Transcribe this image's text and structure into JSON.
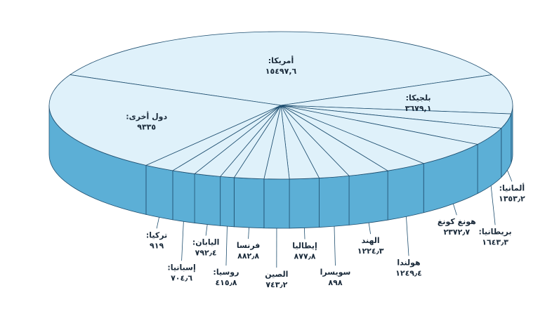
{
  "chart_data": {
    "type": "pie3d",
    "categories": [
      "أمريكا:",
      "بلجيكا:",
      "ألمانيا:",
      "بريطانيا:",
      "هونغ كونغ",
      "هولندا",
      "الهند",
      "سويسرا",
      "إيطاليا",
      "الصين",
      "فرنسا",
      "روسيا:",
      "اليابان:",
      "إسبانيا:",
      "تركيا:",
      "دول أخرى:"
    ],
    "values": [
      15497.6,
      3679.1,
      1353.2,
      1643.3,
      2372.7,
      1249.4,
      1224.3,
      898,
      877.8,
      743.2,
      882.8,
      415.8,
      792.4,
      704.6,
      919,
      9335
    ],
    "value_labels": [
      "١٥٤٩٧,٦",
      "٣٦٧٩,١",
      "١٣٥٣٫٢",
      "١٦٤٣٫٣",
      "٢٣٧٢٫٧",
      "١٢٤٩٫٤",
      "١٢٢٤٫٣",
      "٨٩٨",
      "٨٧٧٫٨",
      "٧٤٣٫٢",
      "٨٨٢٫٨",
      "٤١٥٫٨",
      "٧٩٢٫٤",
      "٧٠٤٫٦",
      "٩١٩",
      "٩٣٣٥"
    ],
    "top_color": "#dff1fa",
    "side_color": "#5cafd6",
    "edge_color": "#1f4f70"
  }
}
